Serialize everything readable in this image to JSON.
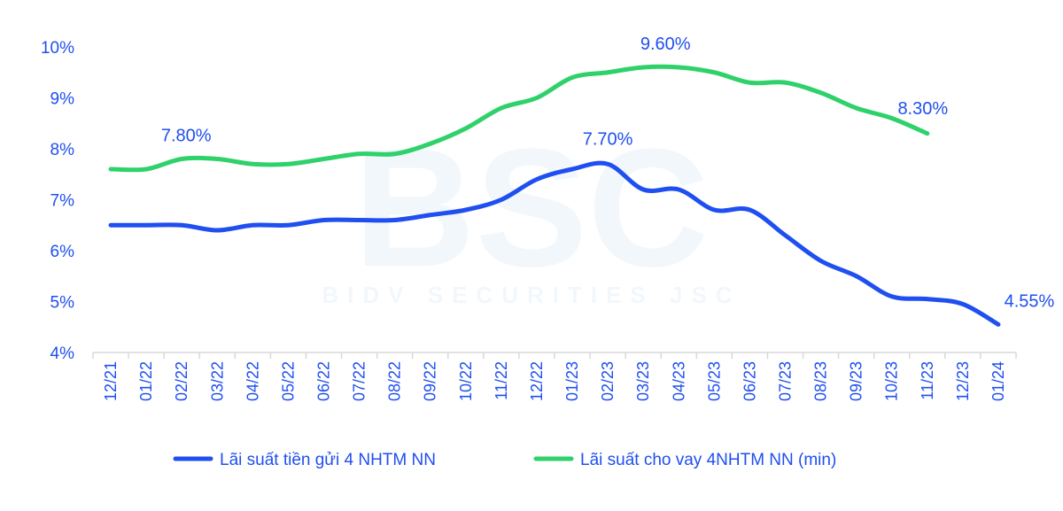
{
  "chart_data": {
    "type": "line",
    "title": "",
    "xlabel": "",
    "ylabel": "",
    "ylim": [
      4,
      10
    ],
    "yticks": [
      "4%",
      "5%",
      "6%",
      "7%",
      "8%",
      "9%",
      "10%"
    ],
    "grid": false,
    "legend_position": "bottom",
    "categories": [
      "12/21",
      "01/22",
      "02/22",
      "03/22",
      "04/22",
      "05/22",
      "06/22",
      "07/22",
      "08/22",
      "09/22",
      "10/22",
      "11/22",
      "12/22",
      "01/23",
      "02/23",
      "03/23",
      "04/23",
      "05/23",
      "06/23",
      "07/23",
      "08/23",
      "09/23",
      "10/23",
      "11/23",
      "12/23",
      "01/24"
    ],
    "series": [
      {
        "name": "Lãi suất tiền gửi 4 NHTM NN",
        "color": "#1f4ff0",
        "values": [
          6.5,
          6.5,
          6.5,
          6.4,
          6.5,
          6.5,
          6.6,
          6.6,
          6.6,
          6.7,
          6.8,
          7.0,
          7.4,
          7.6,
          7.7,
          7.2,
          7.2,
          6.8,
          6.8,
          6.3,
          5.8,
          5.5,
          5.1,
          5.05,
          4.95,
          4.55
        ]
      },
      {
        "name": "Lãi suất cho vay 4NHTM NN (min)",
        "color": "#2ed16a",
        "values": [
          7.6,
          7.6,
          7.8,
          7.8,
          7.7,
          7.7,
          7.8,
          7.9,
          7.9,
          8.1,
          8.4,
          8.8,
          9.0,
          9.4,
          9.5,
          9.6,
          9.6,
          9.5,
          9.3,
          9.3,
          9.1,
          8.8,
          8.6,
          8.3,
          null,
          null
        ]
      }
    ],
    "annotations": [
      {
        "text": "7.80%",
        "series": 1,
        "category": "02/22"
      },
      {
        "text": "9.60%",
        "series": 1,
        "category": "03/23"
      },
      {
        "text": "8.30%",
        "series": 1,
        "category": "11/23"
      },
      {
        "text": "7.70%",
        "series": 0,
        "category": "02/23"
      },
      {
        "text": "4.55%",
        "series": 0,
        "category": "01/24"
      }
    ],
    "label_color": "#1f4ff0",
    "axis_color": "#d9d9d9"
  },
  "watermark": {
    "logo": "BSC",
    "text": "BIDV SECURITIES JSC"
  }
}
